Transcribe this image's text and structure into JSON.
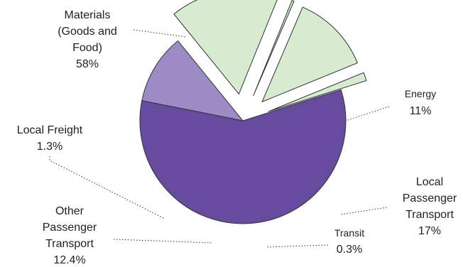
{
  "chart_data": {
    "type": "pie",
    "title": "",
    "slices": [
      {
        "label": "Materials (Goods and Food)",
        "value": 58,
        "value_label": "58%",
        "color": "#664B9E",
        "exploded": false
      },
      {
        "label": "Energy",
        "value": 11,
        "value_label": "11%",
        "color": "#9C8BC5",
        "exploded": false
      },
      {
        "label": "Local Passenger Transport",
        "value": 17,
        "value_label": "17%",
        "color": "#D6EBD0",
        "exploded": true
      },
      {
        "label": "Transit",
        "value": 0.3,
        "value_label": "0.3%",
        "color": "#D6EBD0",
        "exploded": true
      },
      {
        "label": "Other Passenger Transport",
        "value": 12.4,
        "value_label": "12.4%",
        "color": "#D6EBD0",
        "exploded": true
      },
      {
        "label": "Local Freight",
        "value": 1.3,
        "value_label": "1.3%",
        "color": "#D6EBD0",
        "exploded": true
      }
    ],
    "labels": {
      "materials": {
        "lines": [
          "Materials",
          "(Goods and",
          "Food)"
        ],
        "value": "58%"
      },
      "energy": {
        "lines": [
          "Energy"
        ],
        "value": "11%"
      },
      "local_passenger": {
        "lines": [
          "Local",
          "Passenger",
          "Transport"
        ],
        "value": "17%"
      },
      "transit": {
        "lines": [
          "Transit"
        ],
        "value": "0.3%"
      },
      "other_passenger": {
        "lines": [
          "Other",
          "Passenger",
          "Transport"
        ],
        "value": "12.4%"
      },
      "local_freight": {
        "lines": [
          "Local Freight"
        ],
        "value": "1.3%"
      }
    },
    "legend": "none",
    "grid": false
  }
}
